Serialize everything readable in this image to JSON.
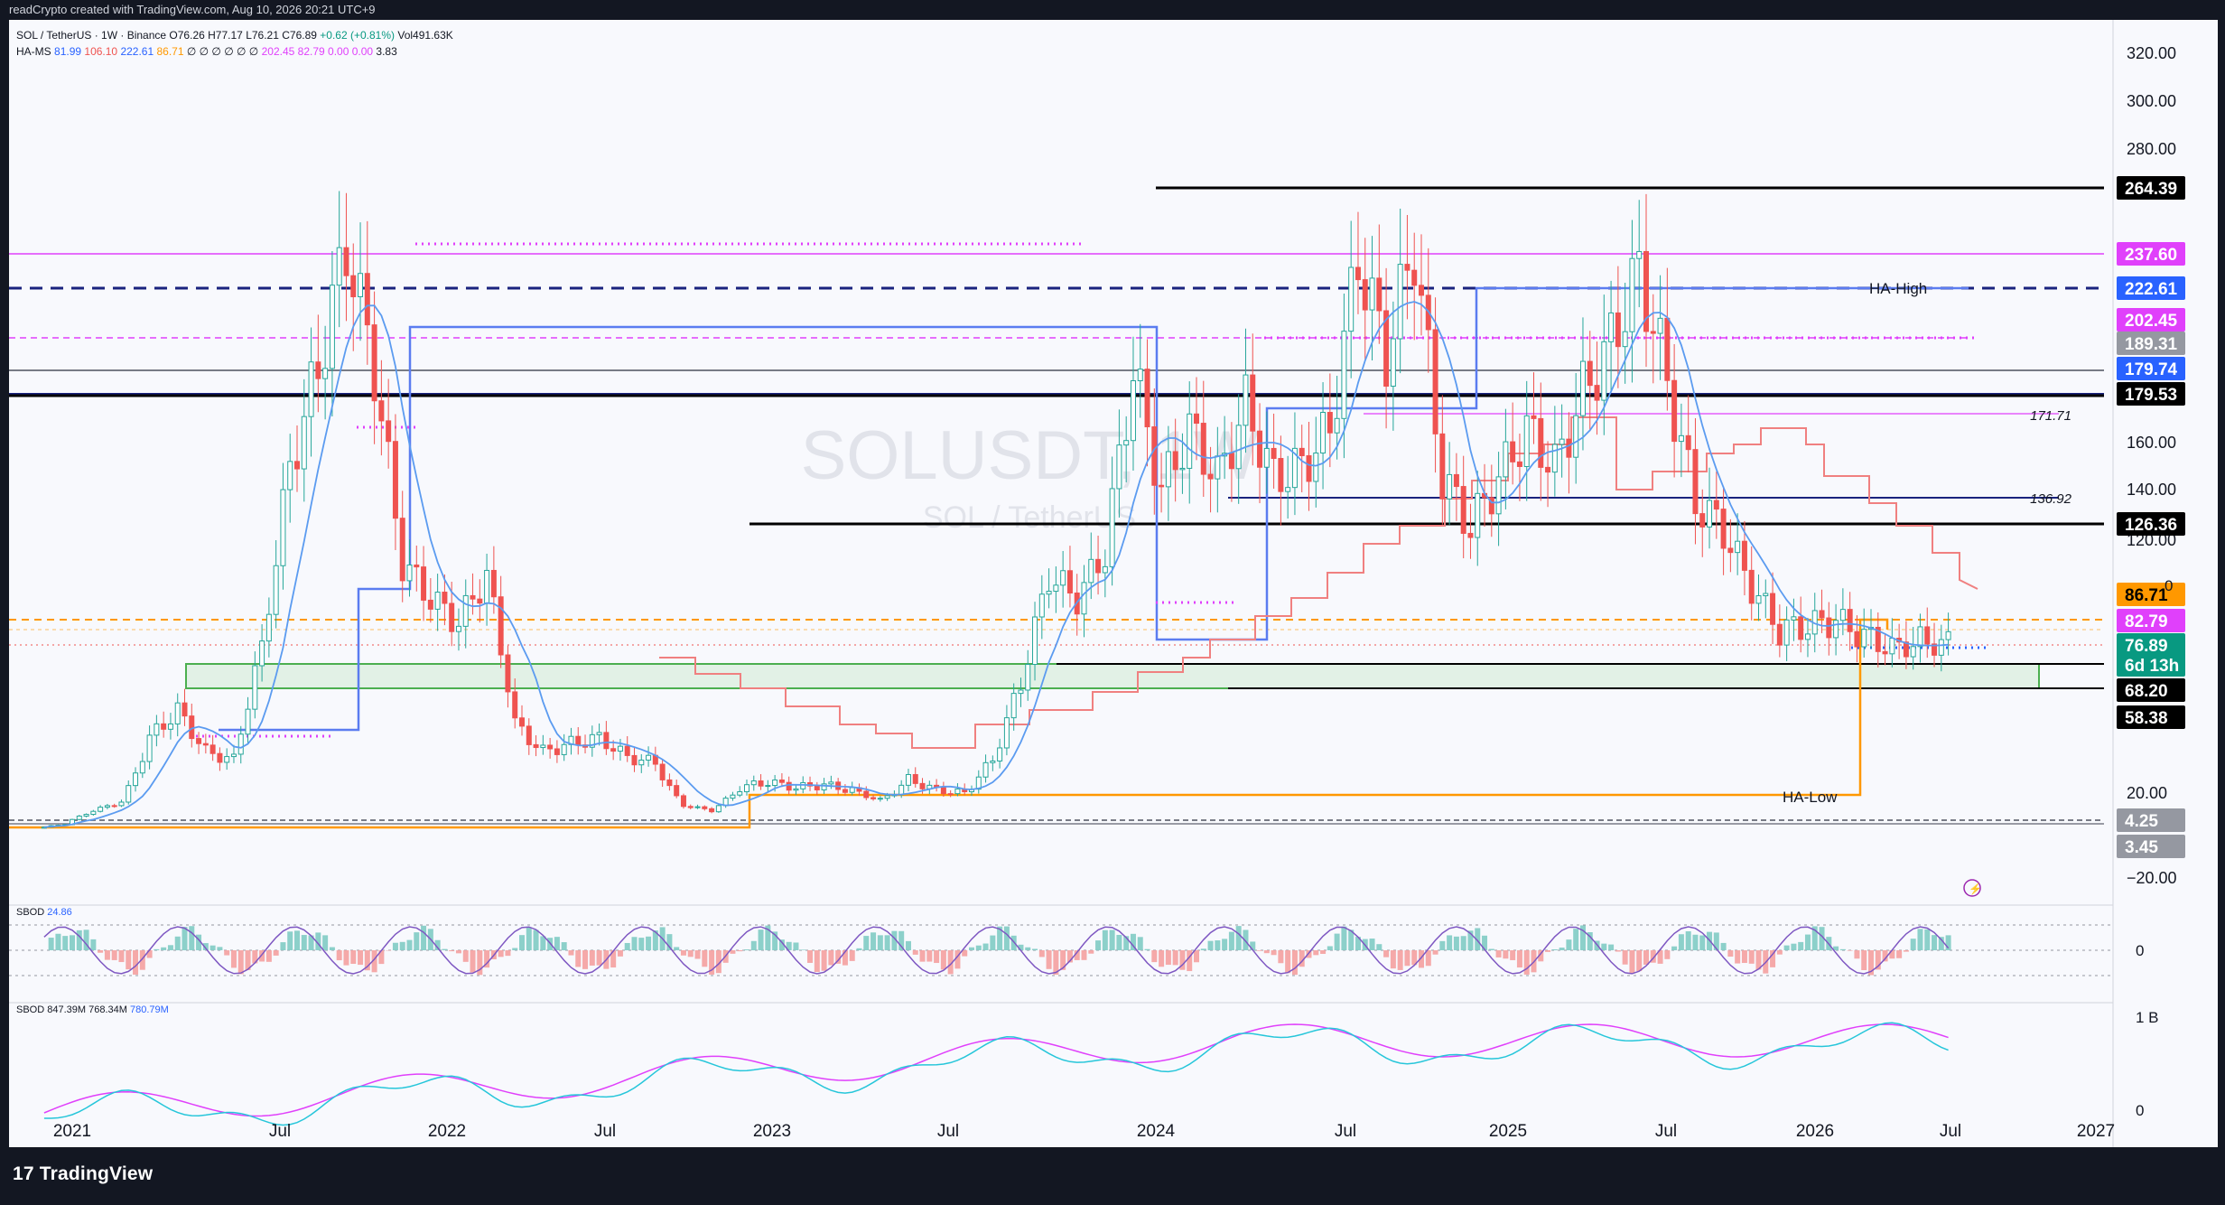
{
  "header": {
    "caption": "readCrypto created with TradingView.com, Aug 10, 2026 20:21 UTC+9"
  },
  "legend": {
    "line1": {
      "symbol": "SOL / TetherUS · 1W · Binance",
      "o": "O76.26",
      "h": "H77.17",
      "l": "L76.21",
      "c": "C76.89",
      "chg": "+0.62 (+0.81%)",
      "vol": "Vol491.63K"
    },
    "line2": {
      "name": "HA-MS",
      "v1": "81.99",
      "v2": "106.10",
      "v3": "222.61",
      "v4": "86.71",
      "dashes": "∅ ∅ ∅ ∅ ∅ ∅",
      "v5": "202.45",
      "v6": "82.79",
      "v7": "0.00",
      "v8": "0.00",
      "v9": "3.83"
    },
    "sbod1": {
      "name": "SBOD",
      "value": "24.86"
    },
    "sbod2": {
      "name": "SBOD",
      "v1": "847.39M",
      "v2": "768.34M",
      "v3": "780.79M"
    }
  },
  "watermark": {
    "title": "SOLUSDT, 1W",
    "subtitle": "SOL / TetherUS"
  },
  "footer": {
    "brand": "TradingView",
    "brand_mark": "17"
  },
  "colors": {
    "up": "#26a69a",
    "down": "#ef5350",
    "magenta": "#e040fb",
    "navy": "#1a237e",
    "blue": "#2962ff",
    "orange": "#ff9800",
    "salmon": "#f08080",
    "green": "#4caf50",
    "black": "#000000"
  },
  "chart_data": {
    "type": "candlestick",
    "title": "SOLUSDT, 1W",
    "subtitle": "SOL / TetherUS",
    "y_ticks": [
      "320.00",
      "300.00",
      "280.00",
      "160.00",
      "140.00",
      "120.00",
      "20.00",
      "−20.00"
    ],
    "x_ticks": [
      "2021",
      "Jul",
      "2022",
      "Jul",
      "2023",
      "Jul",
      "2024",
      "Jul",
      "2025",
      "Jul",
      "2026",
      "Jul",
      "2027"
    ],
    "price_labels": [
      {
        "value": "264.39",
        "kind": "black"
      },
      {
        "value": "237.60",
        "kind": "magenta"
      },
      {
        "value": "222.61",
        "kind": "blue"
      },
      {
        "value": "202.45",
        "kind": "magenta"
      },
      {
        "value": "189.31",
        "kind": "grey"
      },
      {
        "value": "179.74",
        "kind": "blue"
      },
      {
        "value": "179.53",
        "kind": "black"
      },
      {
        "value": "126.36",
        "kind": "black"
      },
      {
        "value": "86.71",
        "kind": "orange"
      },
      {
        "value": "82.79",
        "kind": "magenta"
      },
      {
        "value": "76.89",
        "kind": "green"
      },
      {
        "value": "6d 13h",
        "kind": "green"
      },
      {
        "value": "68.20",
        "kind": "black"
      },
      {
        "value": "58.38",
        "kind": "black"
      },
      {
        "value": "4.25",
        "kind": "grey"
      },
      {
        "value": "3.45",
        "kind": "grey"
      }
    ],
    "level_notes": [
      {
        "text": "171.71",
        "value": 171.71
      },
      {
        "text": "136.92",
        "value": 136.92
      }
    ],
    "annotations": [
      "HA-High",
      "HA-Low"
    ],
    "cut_label": "0",
    "price_points": [
      [
        "2020-12",
        1.6
      ],
      [
        "2021-01",
        3
      ],
      [
        "2021-02",
        10
      ],
      [
        "2021-03",
        15
      ],
      [
        "2021-04",
        40
      ],
      [
        "2021-05",
        50
      ],
      [
        "2021-06",
        35
      ],
      [
        "2021-07",
        32
      ],
      [
        "2021-08",
        75
      ],
      [
        "2021-09",
        150
      ],
      [
        "2021-10",
        190
      ],
      [
        "2021-11",
        240
      ],
      [
        "2021-12",
        190
      ],
      [
        "2022-01",
        110
      ],
      [
        "2022-02",
        95
      ],
      [
        "2022-03",
        85
      ],
      [
        "2022-04",
        105
      ],
      [
        "2022-05",
        45
      ],
      [
        "2022-06",
        35
      ],
      [
        "2022-07",
        38
      ],
      [
        "2022-08",
        40
      ],
      [
        "2022-09",
        33
      ],
      [
        "2022-10",
        31
      ],
      [
        "2022-11",
        13
      ],
      [
        "2022-12",
        10
      ],
      [
        "2023-01",
        22
      ],
      [
        "2023-02",
        24
      ],
      [
        "2023-03",
        22
      ],
      [
        "2023-04",
        23
      ],
      [
        "2023-05",
        21
      ],
      [
        "2023-06",
        16
      ],
      [
        "2023-07",
        25
      ],
      [
        "2023-08",
        21
      ],
      [
        "2023-09",
        20
      ],
      [
        "2023-10",
        32
      ],
      [
        "2023-11",
        60
      ],
      [
        "2023-12",
        105
      ],
      [
        "2024-01",
        95
      ],
      [
        "2024-02",
        115
      ],
      [
        "2024-03",
        190
      ],
      [
        "2024-04",
        140
      ],
      [
        "2024-05",
        165
      ],
      [
        "2024-06",
        145
      ],
      [
        "2024-07",
        175
      ],
      [
        "2024-08",
        145
      ],
      [
        "2024-09",
        150
      ],
      [
        "2024-10",
        165
      ],
      [
        "2024-11",
        235
      ],
      [
        "2024-12",
        195
      ],
      [
        "2025-01",
        240
      ],
      [
        "2025-02",
        145
      ],
      [
        "2025-03",
        125
      ],
      [
        "2025-04",
        145
      ],
      [
        "2025-05",
        165
      ],
      [
        "2025-06",
        150
      ],
      [
        "2025-07",
        180
      ],
      [
        "2025-08",
        200
      ],
      [
        "2025-09",
        230
      ],
      [
        "2025-10",
        185
      ],
      [
        "2025-11",
        135
      ],
      [
        "2025-12",
        124
      ],
      [
        "2026-01",
        100
      ],
      [
        "2026-02",
        82
      ],
      [
        "2026-03",
        84
      ],
      [
        "2026-04",
        86
      ],
      [
        "2026-05",
        80
      ],
      [
        "2026-06",
        75
      ],
      [
        "2026-07",
        78
      ],
      [
        "2026-08",
        76.89
      ]
    ],
    "oscillator_1_ticks": [
      "0"
    ],
    "oscillator_2_ticks": [
      "1 B",
      "0"
    ]
  }
}
